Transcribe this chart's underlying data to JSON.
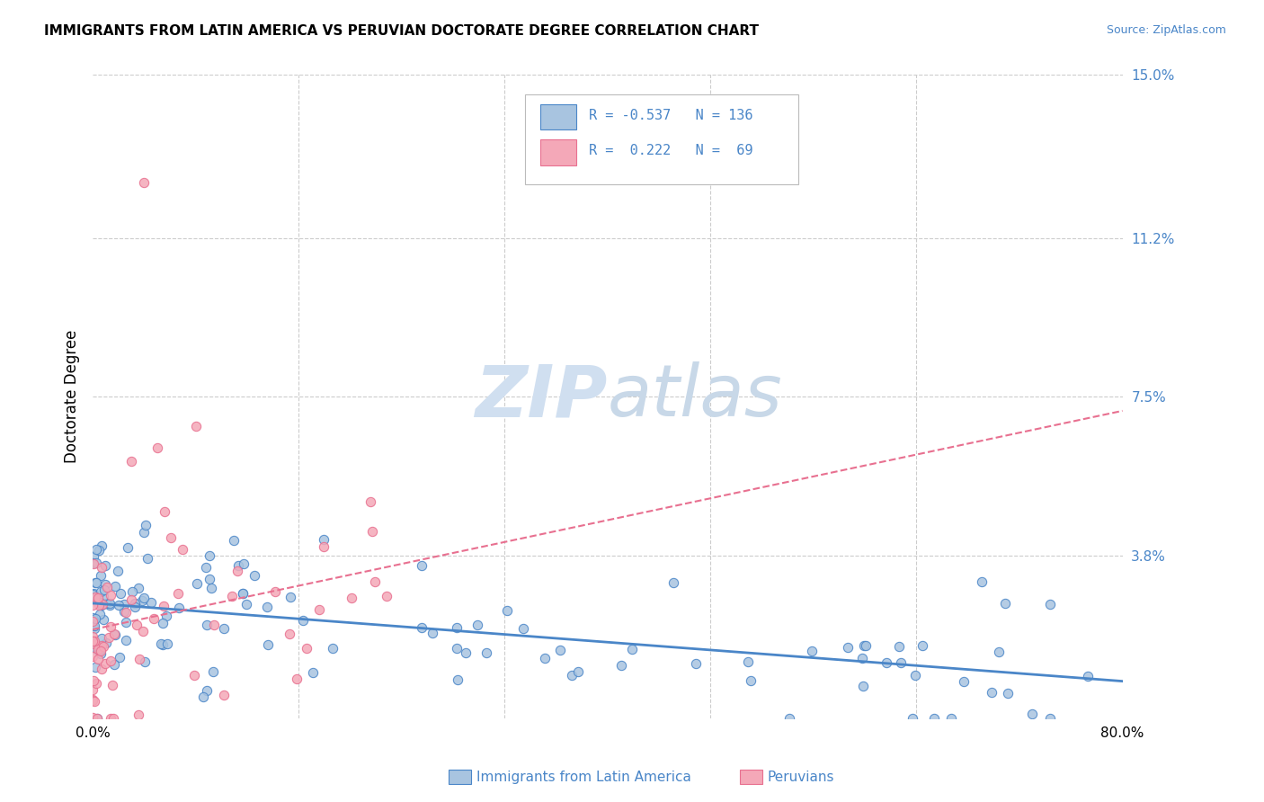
{
  "title": "IMMIGRANTS FROM LATIN AMERICA VS PERUVIAN DOCTORATE DEGREE CORRELATION CHART",
  "source": "Source: ZipAtlas.com",
  "ylabel": "Doctorate Degree",
  "xlim": [
    0.0,
    0.8
  ],
  "ylim": [
    0.0,
    0.15
  ],
  "yticks_right": [
    0.038,
    0.075,
    0.112,
    0.15
  ],
  "ytick_right_labels": [
    "3.8%",
    "7.5%",
    "11.2%",
    "15.0%"
  ],
  "grid_color": "#cccccc",
  "blue_fill_color": "#a8c4e0",
  "pink_fill_color": "#f4a8b8",
  "blue_edge_color": "#4a86c8",
  "pink_edge_color": "#e87090",
  "blue_line_color": "#4a86c8",
  "pink_line_color": "#e87090",
  "watermark_color": "#d0dff0",
  "legend_R_blue": "-0.537",
  "legend_N_blue": "136",
  "legend_R_pink": "0.222",
  "legend_N_pink": "69",
  "blue_seed": 42,
  "pink_seed": 7,
  "blue_R": -0.537,
  "pink_R": 0.222,
  "blue_N": 136,
  "pink_N": 69
}
